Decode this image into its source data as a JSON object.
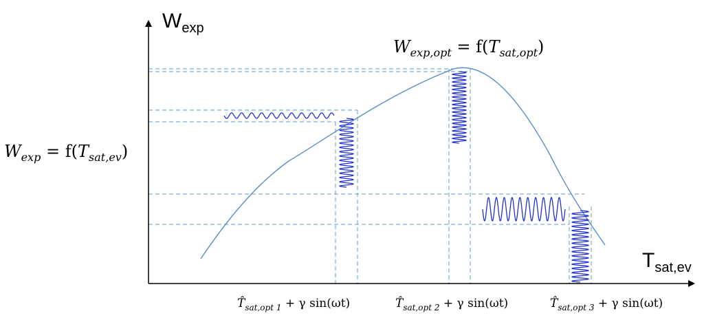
{
  "axes": {
    "y_label_main": "W",
    "y_label_sub": "exp",
    "x_label_main": "T",
    "x_label_sub": "sat,ev"
  },
  "equations": {
    "left": {
      "var": "W",
      "var_sub": "exp",
      "eq": " = f(",
      "arg": "T",
      "arg_sub": "sat,ev",
      "close": ")"
    },
    "top": {
      "var": "W",
      "var_sub": "exp,opt",
      "eq": " = f(",
      "arg": "T",
      "arg_sub": "sat,opt",
      "close": ")"
    }
  },
  "bottom_labels": [
    {
      "t": "T̂",
      "sub": "sat,opt 1",
      "rest": " + γ sin(ωt)"
    },
    {
      "t": "T̂",
      "sub": "sat,opt 2",
      "rest": " + γ sin(ωt)"
    },
    {
      "t": "T̂",
      "sub": "sat,opt 3",
      "rest": " + γ sin(ωt)"
    }
  ],
  "colors": {
    "axis": "#000000",
    "curve": "#5b8fc7",
    "guide": "#5b9bd5",
    "wave": "#1f2fd6"
  }
}
